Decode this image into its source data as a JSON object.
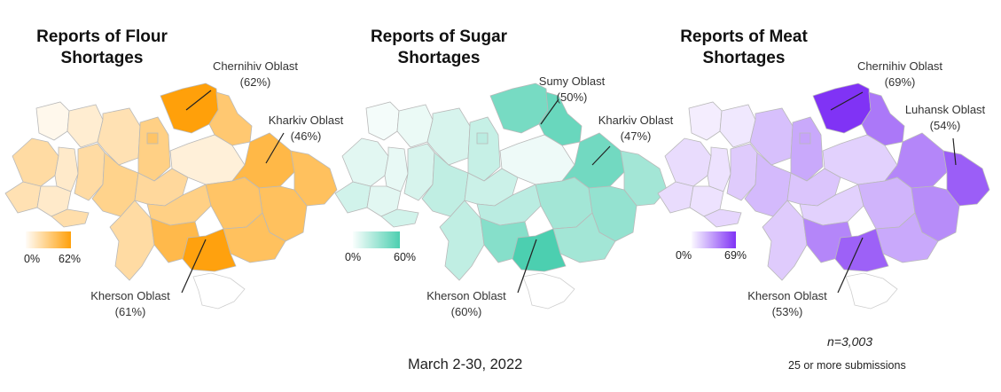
{
  "panels": [
    {
      "title_line1": "Reports of Flour",
      "title_line2": "Shortages",
      "color": "#ffa00a",
      "legend_min": "0%",
      "legend_max": "62%",
      "max_value": 62,
      "callouts": [
        {
          "region": "Chernihiv Oblast",
          "value": "(62%)"
        },
        {
          "region": "Kharkiv Oblast",
          "value": "(46%)"
        },
        {
          "region": "Kherson Oblast",
          "value": "(61%)"
        }
      ],
      "values": {
        "volyn": 3,
        "rivne": 10,
        "zhytomyr": 18,
        "kyiv_city": 38,
        "kyiv": 30,
        "chernihiv": 62,
        "sumy": 35,
        "lviv": 22,
        "ternopil": 12,
        "khmelnytskyi": 22,
        "vinnytsia": 28,
        "cherkasy": 24,
        "poltava": 8,
        "kharkiv": 46,
        "luhansk": 40,
        "zakarpattia": 18,
        "ivano": 12,
        "chernivtsi": 20,
        "kirovohrad": 30,
        "dnipro": 38,
        "donetsk": 40,
        "odesa": 22,
        "mykolaiv": 45,
        "zaporizhzhia": 40,
        "kherson": 61,
        "crimea": 0
      }
    },
    {
      "title_line1": "Reports of Sugar",
      "title_line2": "Shortages",
      "color": "#4ccfb0",
      "legend_min": "0%",
      "legend_max": "60%",
      "max_value": 60,
      "callouts": [
        {
          "region": "Sumy Oblast",
          "value": "(50%)"
        },
        {
          "region": "Kharkiv Oblast",
          "value": "(47%)"
        },
        {
          "region": "Kherson Oblast",
          "value": "(60%)"
        }
      ],
      "values": {
        "volyn": 2,
        "rivne": 5,
        "zhytomyr": 12,
        "kyiv_city": 22,
        "kyiv": 18,
        "chernihiv": 45,
        "sumy": 50,
        "lviv": 8,
        "ternopil": 6,
        "khmelnytskyi": 12,
        "vinnytsia": 20,
        "cherkasy": 16,
        "poltava": 4,
        "kharkiv": 47,
        "luhansk": 30,
        "zakarpattia": 14,
        "ivano": 8,
        "chernivtsi": 14,
        "kirovohrad": 22,
        "dnipro": 30,
        "donetsk": 35,
        "odesa": 20,
        "mykolaiv": 40,
        "zaporizhzhia": 30,
        "kherson": 60,
        "crimea": 0
      }
    },
    {
      "title_line1": "Reports of Meat",
      "title_line2": "Shortages",
      "color": "#8033f5",
      "legend_min": "0%",
      "legend_max": "69%",
      "max_value": 69,
      "callouts": [
        {
          "region": "Chernihiv Oblast",
          "value": "(69%)"
        },
        {
          "region": "Luhansk Oblast",
          "value": "(54%)"
        },
        {
          "region": "Kherson Oblast",
          "value": "(53%)"
        }
      ],
      "values": {
        "volyn": 4,
        "rivne": 6,
        "zhytomyr": 20,
        "kyiv_city": 30,
        "kyiv": 28,
        "chernihiv": 69,
        "sumy": 45,
        "lviv": 10,
        "ternopil": 8,
        "khmelnytskyi": 16,
        "vinnytsia": 22,
        "cherkasy": 18,
        "poltava": 14,
        "kharkiv": 40,
        "luhansk": 54,
        "zakarpattia": 10,
        "ivano": 8,
        "chernivtsi": 12,
        "kirovohrad": 14,
        "dnipro": 24,
        "donetsk": 38,
        "odesa": 16,
        "mykolaiv": 40,
        "zaporizhzhia": 28,
        "kherson": 53,
        "crimea": 0
      }
    }
  ],
  "footer": {
    "date": "March 2-30, 2022",
    "n": "n=3,003",
    "submissions": "25 or more submissions"
  }
}
